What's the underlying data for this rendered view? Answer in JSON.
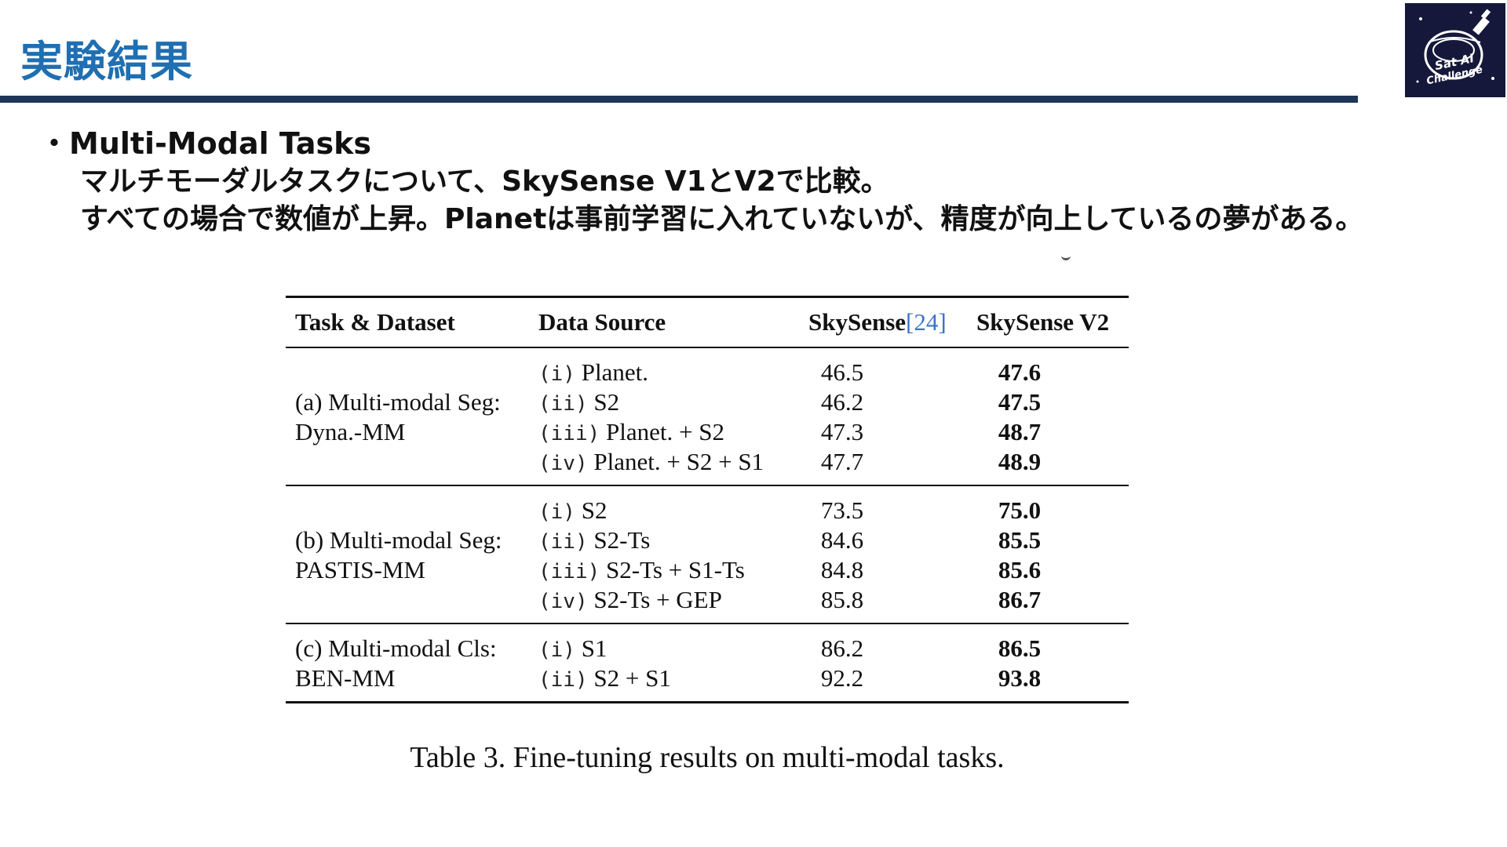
{
  "slide": {
    "title": "実験結果",
    "bullet_heading": "・Multi-Modal Tasks",
    "bullet_lines": [
      "マルチモーダルタスクについて、SkySense V1とV2で比較。",
      "すべての場合で数値が上昇。Planetは事前学習に入れていないが、精度が向上しているの夢がある。"
    ],
    "logo_text": "Sat AI Challenge"
  },
  "table": {
    "headers": {
      "task": "Task & Dataset",
      "source": "Data Source",
      "v1": "SkySense",
      "v1_cite": "[24]",
      "v2": "SkySense V2"
    },
    "groups": [
      {
        "task_line1": "(a) Multi-modal Seg:",
        "task_line2": "Dyna.-MM",
        "rows": [
          {
            "idx": "(i)",
            "source": "Planet.",
            "v1": "46.5",
            "v2": "47.6"
          },
          {
            "idx": "(ii)",
            "source": "S2",
            "v1": "46.2",
            "v2": "47.5"
          },
          {
            "idx": "(iii)",
            "source": "Planet. + S2",
            "v1": "47.3",
            "v2": "48.7"
          },
          {
            "idx": "(iv)",
            "source": "Planet. + S2 + S1",
            "v1": "47.7",
            "v2": "48.9"
          }
        ]
      },
      {
        "task_line1": "(b) Multi-modal Seg:",
        "task_line2": "PASTIS-MM",
        "rows": [
          {
            "idx": "(i)",
            "source": "S2",
            "v1": "73.5",
            "v2": "75.0"
          },
          {
            "idx": "(ii)",
            "source": "S2-Ts",
            "v1": "84.6",
            "v2": "85.5"
          },
          {
            "idx": "(iii)",
            "source": "S2-Ts + S1-Ts",
            "v1": "84.8",
            "v2": "85.6"
          },
          {
            "idx": "(iv)",
            "source": "S2-Ts + GEP",
            "v1": "85.8",
            "v2": "86.7"
          }
        ]
      },
      {
        "task_line1": "(c) Multi-modal Cls:",
        "task_line2": "BEN-MM",
        "rows": [
          {
            "idx": "(i)",
            "source": "S1",
            "v1": "86.2",
            "v2": "86.5"
          },
          {
            "idx": "(ii)",
            "source": "S2 + S1",
            "v1": "92.2",
            "v2": "93.8"
          }
        ]
      }
    ],
    "caption": "Table 3. Fine-tuning results on multi-modal tasks."
  },
  "colors": {
    "title": "#1f6fb2",
    "rule": "#1e3558",
    "logo_bg": "#15183a",
    "citation": "#3b74c8"
  }
}
